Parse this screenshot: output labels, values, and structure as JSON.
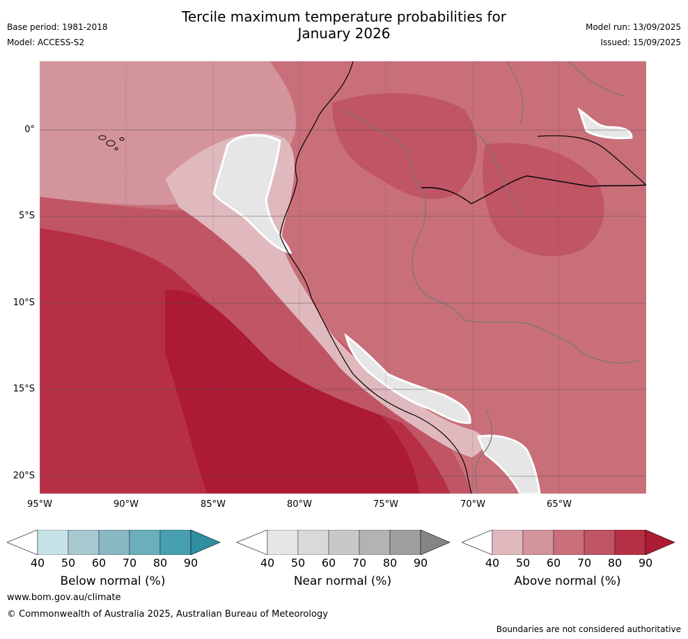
{
  "header": {
    "title_line1": "Tercile maximum temperature probabilities for",
    "title_line2": "January 2026",
    "base_period": "Base period: 1981-2018",
    "model": "Model: ACCESS-S2",
    "model_run": "Model run: 13/09/2025",
    "issued": "Issued: 15/09/2025"
  },
  "map": {
    "lat_ticks": [
      "0°",
      "5°S",
      "10°S",
      "15°S",
      "20°S"
    ],
    "lon_ticks": [
      "95°W",
      "90°W",
      "85°W",
      "80°W",
      "75°W",
      "70°W",
      "65°W"
    ],
    "dominant_category": "Above normal"
  },
  "colorbars": [
    {
      "label": "Below normal (%)",
      "ticks": [
        "40",
        "50",
        "60",
        "70",
        "80",
        "90"
      ],
      "colors": [
        "#ffffff",
        "#c8e3e8",
        "#a7c9cf",
        "#89b7c2",
        "#6aafba",
        "#48a0af",
        "#2f8ea0"
      ]
    },
    {
      "label": "Near normal (%)",
      "ticks": [
        "40",
        "50",
        "60",
        "70",
        "80",
        "90"
      ],
      "colors": [
        "#ffffff",
        "#e6e6e6",
        "#d9d9d9",
        "#c8c8c8",
        "#b3b3b3",
        "#9e9e9e",
        "#858585"
      ]
    },
    {
      "label": "Above normal (%)",
      "ticks": [
        "40",
        "50",
        "60",
        "70",
        "80",
        "90"
      ],
      "colors": [
        "#ffffff",
        "#e0b9be",
        "#d4949b",
        "#c96f79",
        "#c05565",
        "#b72f45",
        "#ad1a34"
      ]
    }
  ],
  "footer": {
    "website": "www.bom.gov.au/climate",
    "copyright": "© Commonwealth of Australia 2025, Australian Bureau of Meteorology",
    "disclaimer": "Boundaries are not considered authoritative"
  }
}
